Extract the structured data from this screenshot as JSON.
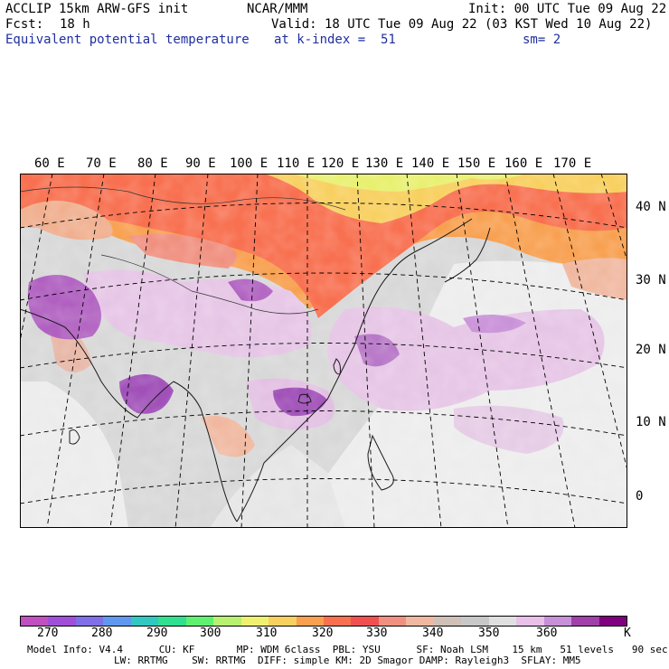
{
  "header": {
    "model": "ACCLIP 15km ARW-GFS init",
    "org": "NCAR/MMM",
    "init": "Init: 00 UTC Tue 09 Aug 22",
    "fcst_label": "Fcst:",
    "fcst_value": "18 h",
    "valid": "Valid: 18 UTC Tue 09 Aug 22 (03 KST Wed 10 Aug 22)",
    "field": "Equivalent potential temperature",
    "level": "at k-index =  51",
    "smooth": "sm= 2"
  },
  "lon_labels": [
    "60 E",
    "70 E",
    "80 E",
    "90 E",
    "100 E",
    "110 E",
    "120 E",
    "130 E",
    "140 E",
    "150 E",
    "160 E",
    "170 E"
  ],
  "lat_labels": [
    "40 N",
    "30 N",
    "20 N",
    "10 N",
    "0"
  ],
  "colorbar": {
    "ticks": [
      "270",
      "280",
      "290",
      "300",
      "310",
      "320",
      "330",
      "340",
      "350",
      "360"
    ],
    "unit": "K",
    "colors": [
      "#c050c0",
      "#a050d8",
      "#7f6fe8",
      "#5f98ee",
      "#30c8c0",
      "#30e090",
      "#60f070",
      "#b8f070",
      "#f0f070",
      "#f8d060",
      "#f8a050",
      "#f87050",
      "#f05050",
      "#f09080",
      "#f0b8a0",
      "#d0c0b8",
      "#c8c8c8",
      "#e0e0e0",
      "#e8c0e8",
      "#c890d8",
      "#a040a8",
      "#800080"
    ]
  },
  "footer": {
    "line1": "Model Info: V4.4      CU: KF       MP: WDM 6class  PBL: YSU      SF: Noah LSM    15 km   51 levels   90 sec",
    "line2": "LW: RRTMG    SW: RRTMG  DIFF: simple KM: 2D Smagor DAMP: Rayleigh3  SFLAY: MM5"
  }
}
